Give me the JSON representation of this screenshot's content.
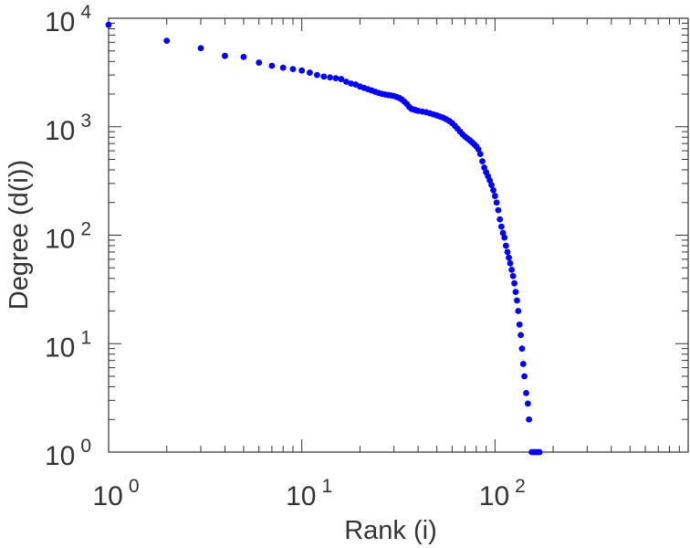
{
  "chart_data": {
    "type": "scatter",
    "xlabel": "Rank (i)",
    "ylabel": "Degree (d(i))",
    "x_scale": "log",
    "y_scale": "log",
    "xlim": [
      1,
      1000
    ],
    "ylim": [
      1,
      10000
    ],
    "grid": false,
    "marker_color": "#0000ff",
    "x_ticks": [
      {
        "base": "10",
        "exp": "0"
      },
      {
        "base": "10",
        "exp": "1"
      },
      {
        "base": "10",
        "exp": "2"
      }
    ],
    "y_ticks": [
      {
        "base": "10",
        "exp": "0"
      },
      {
        "base": "10",
        "exp": "1"
      },
      {
        "base": "10",
        "exp": "2"
      },
      {
        "base": "10",
        "exp": "3"
      },
      {
        "base": "10",
        "exp": "4"
      }
    ],
    "points": [
      [
        1,
        8700
      ],
      [
        2,
        6200
      ],
      [
        3,
        5300
      ],
      [
        4,
        4500
      ],
      [
        5,
        4400
      ],
      [
        6,
        3900
      ],
      [
        7,
        3650
      ],
      [
        8,
        3500
      ],
      [
        9,
        3400
      ],
      [
        10,
        3300
      ],
      [
        11,
        3150
      ],
      [
        12,
        3000
      ],
      [
        13,
        2900
      ],
      [
        14,
        2850
      ],
      [
        15,
        2800
      ],
      [
        16,
        2750
      ],
      [
        17,
        2600
      ],
      [
        18,
        2500
      ],
      [
        19,
        2450
      ],
      [
        20,
        2350
      ],
      [
        21,
        2280
      ],
      [
        22,
        2220
      ],
      [
        23,
        2160
      ],
      [
        24,
        2100
      ],
      [
        25,
        2050
      ],
      [
        26,
        2010
      ],
      [
        27,
        1980
      ],
      [
        28,
        1960
      ],
      [
        29,
        1940
      ],
      [
        30,
        1920
      ],
      [
        31,
        1880
      ],
      [
        32,
        1840
      ],
      [
        33,
        1780
      ],
      [
        34,
        1700
      ],
      [
        35,
        1620
      ],
      [
        36,
        1520
      ],
      [
        37,
        1460
      ],
      [
        38,
        1440
      ],
      [
        39,
        1420
      ],
      [
        40,
        1400
      ],
      [
        42,
        1380
      ],
      [
        44,
        1360
      ],
      [
        46,
        1330
      ],
      [
        48,
        1300
      ],
      [
        50,
        1270
      ],
      [
        52,
        1240
      ],
      [
        54,
        1210
      ],
      [
        56,
        1170
      ],
      [
        58,
        1130
      ],
      [
        60,
        1080
      ],
      [
        62,
        1020
      ],
      [
        64,
        960
      ],
      [
        66,
        900
      ],
      [
        68,
        850
      ],
      [
        70,
        810
      ],
      [
        72,
        780
      ],
      [
        74,
        750
      ],
      [
        76,
        720
      ],
      [
        78,
        690
      ],
      [
        80,
        660
      ],
      [
        82,
        620
      ],
      [
        84,
        560
      ],
      [
        86,
        480
      ],
      [
        88,
        420
      ],
      [
        90,
        380
      ],
      [
        92,
        350
      ],
      [
        94,
        320
      ],
      [
        96,
        290
      ],
      [
        98,
        260
      ],
      [
        100,
        230
      ],
      [
        102,
        200
      ],
      [
        104,
        170
      ],
      [
        106,
        140
      ],
      [
        108,
        120
      ],
      [
        110,
        105
      ],
      [
        112,
        95
      ],
      [
        114,
        80
      ],
      [
        116,
        70
      ],
      [
        118,
        62
      ],
      [
        120,
        55
      ],
      [
        122,
        48
      ],
      [
        124,
        42
      ],
      [
        126,
        36
      ],
      [
        128,
        30
      ],
      [
        130,
        25
      ],
      [
        132,
        20
      ],
      [
        134,
        15
      ],
      [
        136,
        12
      ],
      [
        138,
        9
      ],
      [
        140,
        6.5
      ],
      [
        142,
        5
      ],
      [
        145,
        3.5
      ],
      [
        148,
        2.8
      ],
      [
        150,
        2
      ],
      [
        155,
        1
      ],
      [
        158,
        1
      ],
      [
        162,
        1
      ],
      [
        166,
        1
      ],
      [
        170,
        1
      ]
    ]
  }
}
